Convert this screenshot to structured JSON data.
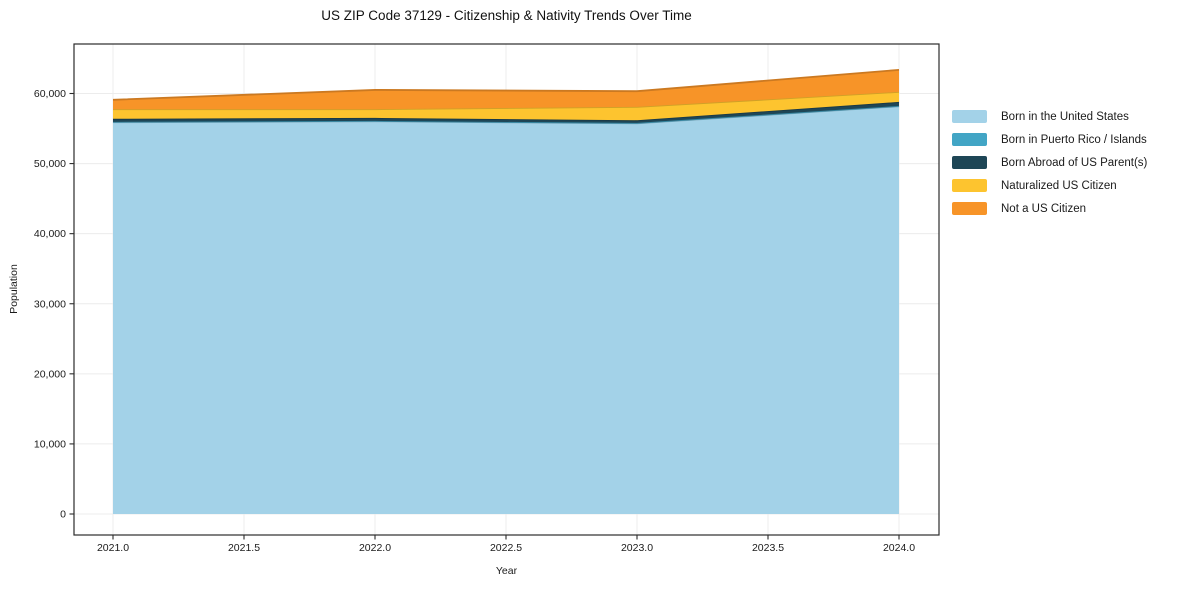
{
  "page": {
    "background": "#ffffff"
  },
  "chart_data": {
    "type": "area",
    "stacked": true,
    "title": "US ZIP Code 37129 - Citizenship & Nativity Trends Over Time",
    "xlabel": "Year",
    "ylabel": "Population",
    "x": [
      2021,
      2022,
      2023,
      2024
    ],
    "series": [
      {
        "name": "Born in the United States",
        "color": "#a3d2e8",
        "values": [
          55900,
          56030,
          55740,
          58170
        ]
      },
      {
        "name": "Born in Puerto Rico / Islands",
        "color": "#42a5c5",
        "values": [
          60,
          60,
          60,
          60
        ]
      },
      {
        "name": "Born Abroad of US Parent(s)",
        "color": "#1e4656",
        "values": [
          430,
          430,
          390,
          570
        ]
      },
      {
        "name": "Naturalized US Citizen",
        "color": "#fdc42f",
        "values": [
          1370,
          1240,
          1900,
          1430
        ]
      },
      {
        "name": "Not a US Citizen",
        "color": "#f79428",
        "values": [
          1340,
          2750,
          2240,
          3140
        ]
      }
    ],
    "totals_by_year": [
      59100,
      60510,
      60330,
      63370
    ],
    "x_ticks": {
      "values": [
        2021.0,
        2021.5,
        2022.0,
        2022.5,
        2023.0,
        2023.5,
        2024.0
      ],
      "labels": [
        "2021.0",
        "2021.5",
        "2022.0",
        "2022.5",
        "2023.0",
        "2023.5",
        "2024.0"
      ]
    },
    "y_ticks": {
      "values": [
        0,
        10000,
        20000,
        30000,
        40000,
        50000,
        60000
      ],
      "labels": [
        "0",
        "10,000",
        "20,000",
        "30,000",
        "40,000",
        "50,000",
        "60,000"
      ]
    },
    "xlim": [
      2020.84,
      2024.16
    ],
    "ylim": [
      -3000,
      67060
    ],
    "grid": true,
    "grid_color": "#ececec",
    "axis_color": "#2b2b2b",
    "legend_position": "right-outside"
  }
}
